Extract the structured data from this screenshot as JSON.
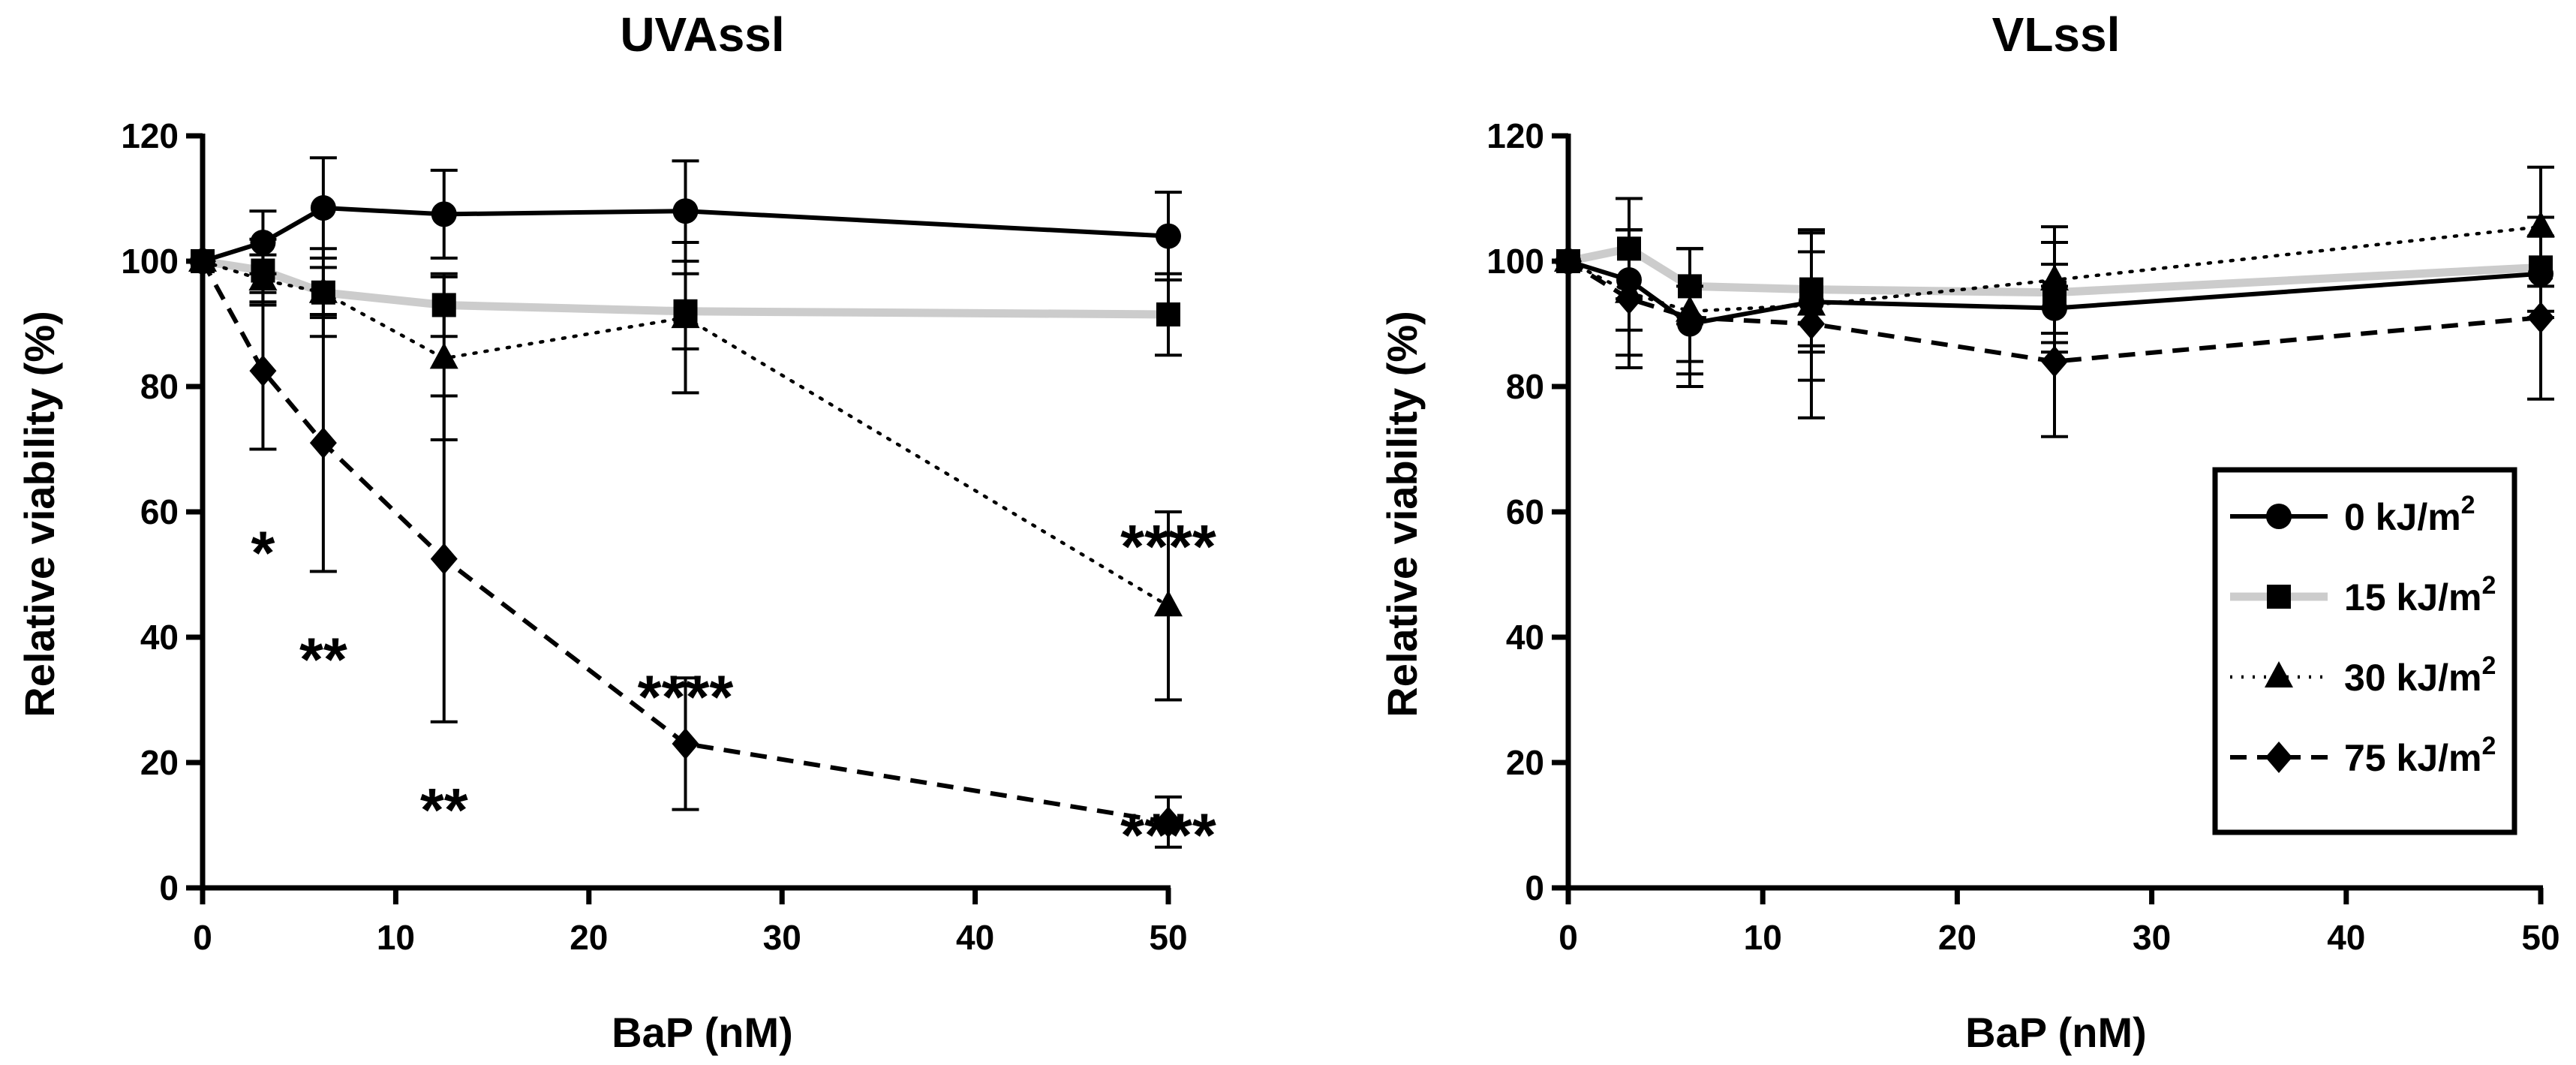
{
  "chart_data": [
    {
      "type": "line",
      "title": "UVAssl",
      "xlabel": "BaP (nM)",
      "ylabel": "Relative viability (%)",
      "xlim": [
        0,
        50
      ],
      "ylim": [
        0,
        120
      ],
      "xticks": [
        0,
        10,
        20,
        30,
        40,
        50
      ],
      "yticks": [
        0,
        20,
        40,
        60,
        80,
        100,
        120
      ],
      "grid": false,
      "x": [
        0,
        3.125,
        6.25,
        12.5,
        25,
        50
      ],
      "series": [
        {
          "name": "0 kJ/m2",
          "values": [
            100,
            103,
            108.5,
            107.5,
            108,
            104
          ],
          "err_low": [
            0,
            5,
            8,
            7,
            8,
            7
          ],
          "err_high": [
            0,
            5,
            8,
            7,
            8,
            7
          ],
          "marker": "circle",
          "line": "solid",
          "color": "#000000"
        },
        {
          "name": "15 kJ/m2",
          "values": [
            100,
            98.5,
            95,
            93,
            92,
            91.5
          ],
          "err_low": [
            0,
            5,
            7,
            5,
            6,
            6.5
          ],
          "err_high": [
            0,
            5,
            7,
            5,
            6,
            6.5
          ],
          "marker": "square",
          "line": "gray",
          "color": "#cccccc"
        },
        {
          "name": "30 kJ/m2",
          "values": [
            100,
            97,
            95,
            84.5,
            91,
            45
          ],
          "err_low": [
            0,
            4,
            4,
            13,
            12,
            15
          ],
          "err_high": [
            0,
            4,
            4,
            13,
            12,
            15
          ],
          "marker": "triangle",
          "line": "dotted",
          "color": "#000000"
        },
        {
          "name": "75 kJ/m2",
          "values": [
            100,
            82.5,
            71,
            52.5,
            23,
            10.5
          ],
          "err_low": [
            0,
            12.5,
            20.5,
            26,
            10.5,
            4
          ],
          "err_high": [
            0,
            12.5,
            20.5,
            26,
            10.5,
            4
          ],
          "marker": "diamond",
          "line": "dashed",
          "color": "#000000"
        }
      ],
      "annotations": [
        {
          "text": "*",
          "x": 3.125,
          "y": 57
        },
        {
          "text": "**",
          "x": 6.25,
          "y": 40
        },
        {
          "text": "**",
          "x": 12.5,
          "y": 16
        },
        {
          "text": "****",
          "x": 25,
          "y": 34
        },
        {
          "text": "****",
          "x": 50,
          "y": 58
        },
        {
          "text": "****",
          "x": 50,
          "y": 12
        }
      ]
    },
    {
      "type": "line",
      "title": "VLssl",
      "xlabel": "BaP (nM)",
      "ylabel": "Relative viability (%)",
      "xlim": [
        0,
        50
      ],
      "ylim": [
        0,
        120
      ],
      "xticks": [
        0,
        10,
        20,
        30,
        40,
        50
      ],
      "yticks": [
        0,
        20,
        40,
        60,
        80,
        100,
        120
      ],
      "grid": false,
      "legend_position": "bottom-right",
      "x": [
        0,
        3.125,
        6.25,
        12.5,
        25,
        50
      ],
      "series": [
        {
          "name": "0 kJ/m2",
          "values": [
            100,
            97,
            90,
            93.5,
            92.5,
            98
          ],
          "err_low": [
            0,
            8,
            6,
            8,
            7,
            6
          ],
          "err_high": [
            0,
            8,
            6,
            8,
            7,
            6
          ],
          "marker": "circle",
          "line": "solid",
          "color": "#000000"
        },
        {
          "name": "15 kJ/m2",
          "values": [
            100,
            102,
            96,
            95.5,
            95,
            99
          ],
          "err_low": [
            0,
            8,
            6,
            9,
            8,
            8
          ],
          "err_high": [
            0,
            8,
            6,
            9,
            8,
            8
          ],
          "marker": "square",
          "line": "gray",
          "color": "#cccccc"
        },
        {
          "name": "30 kJ/m2",
          "values": [
            100,
            95,
            92,
            93,
            97,
            105.5
          ],
          "err_low": [
            0,
            10,
            10,
            12,
            8.5,
            9.5
          ],
          "err_high": [
            0,
            10,
            10,
            12,
            8.5,
            9.5
          ],
          "marker": "triangle",
          "line": "dotted",
          "color": "#000000"
        },
        {
          "name": "75 kJ/m2",
          "values": [
            100,
            94,
            91,
            90,
            84,
            91
          ],
          "err_low": [
            0,
            11,
            11,
            15,
            12,
            13
          ],
          "err_high": [
            0,
            11,
            11,
            15,
            12,
            13
          ],
          "marker": "diamond",
          "line": "dashed",
          "color": "#000000"
        }
      ]
    }
  ],
  "legend": {
    "entries": [
      {
        "label": "0 kJ/m",
        "sup": "2"
      },
      {
        "label": "15 kJ/m",
        "sup": "2"
      },
      {
        "label": "30 kJ/m",
        "sup": "2"
      },
      {
        "label": "75 kJ/m",
        "sup": "2"
      }
    ]
  }
}
